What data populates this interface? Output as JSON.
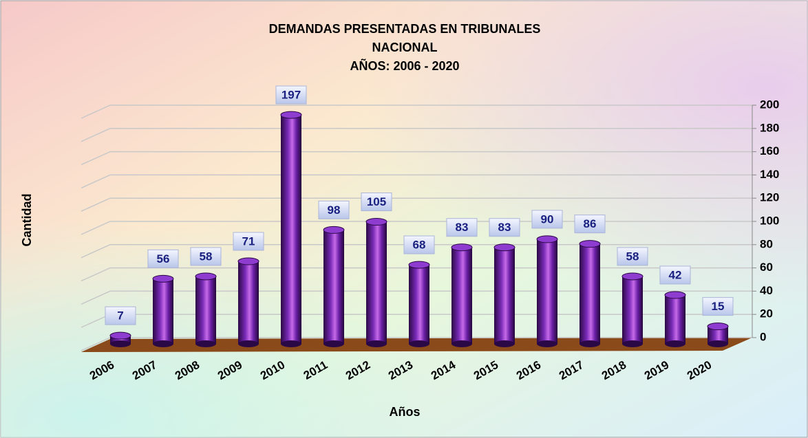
{
  "chart_data": {
    "type": "bar",
    "title_lines": [
      "DEMANDAS PRESENTADAS EN TRIBUNALES",
      "NACIONAL",
      "AÑOS: 2006 - 2020"
    ],
    "x_label": "Años",
    "y_label": "Cantidad",
    "categories": [
      "2006",
      "2007",
      "2008",
      "2009",
      "2010",
      "2011",
      "2012",
      "2013",
      "2014",
      "2015",
      "2016",
      "2017",
      "2018",
      "2019",
      "2020"
    ],
    "values": [
      7,
      56,
      58,
      71,
      197,
      98,
      105,
      68,
      83,
      83,
      90,
      86,
      58,
      42,
      15
    ],
    "color": "#5a1a8c",
    "ylim": [
      0,
      200
    ],
    "yticks": [
      0,
      20,
      40,
      60,
      80,
      100,
      120,
      140,
      160,
      180,
      200
    ],
    "grid": true
  }
}
